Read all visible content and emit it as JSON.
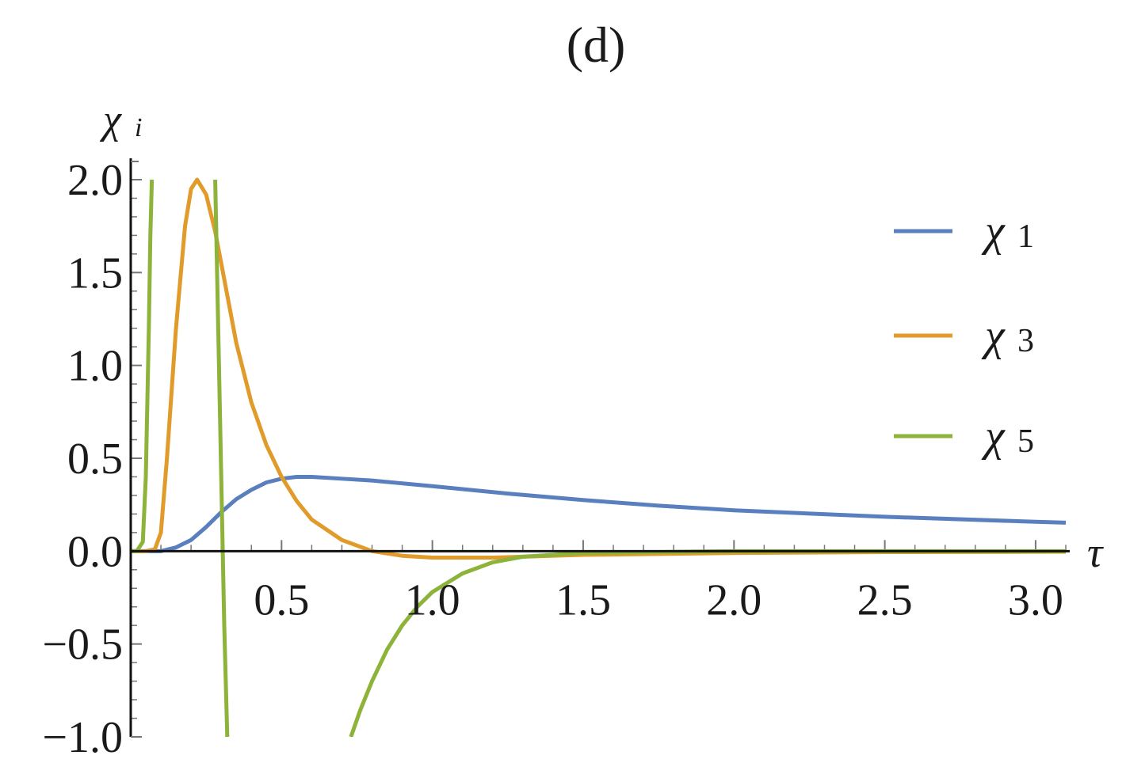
{
  "chart_data": {
    "type": "line",
    "title": "(d)",
    "xlabel": "τ",
    "ylabel_main": "χ",
    "ylabel_sub": "i",
    "xlim": [
      0.0,
      3.1
    ],
    "ylim": [
      -1.0,
      2.0
    ],
    "x_ticks": [
      {
        "value": 0.5,
        "label": "0.5"
      },
      {
        "value": 1.0,
        "label": "1.0"
      },
      {
        "value": 1.5,
        "label": "1.5"
      },
      {
        "value": 2.0,
        "label": "2.0"
      },
      {
        "value": 2.5,
        "label": "2.5"
      },
      {
        "value": 3.0,
        "label": "3.0"
      }
    ],
    "y_ticks": [
      {
        "value": 2.0,
        "label": "2.0"
      },
      {
        "value": 1.5,
        "label": "1.5"
      },
      {
        "value": 1.0,
        "label": "1.0"
      },
      {
        "value": 0.5,
        "label": "0.5"
      },
      {
        "value": 0.0,
        "label": "0.0"
      },
      {
        "value": -0.5,
        "label": "−0.5"
      },
      {
        "value": -1.0,
        "label": "−1.0"
      }
    ],
    "legend_position": "top-right",
    "series": [
      {
        "name_main": "χ",
        "name_sub": "1",
        "color": "#5a7fbf",
        "x": [
          0.0,
          0.05,
          0.1,
          0.15,
          0.2,
          0.25,
          0.3,
          0.35,
          0.4,
          0.45,
          0.5,
          0.55,
          0.6,
          0.7,
          0.8,
          0.9,
          1.0,
          1.25,
          1.5,
          1.75,
          2.0,
          2.5,
          3.0,
          3.1
        ],
        "y": [
          0.0,
          0.0,
          0.0,
          0.02,
          0.06,
          0.13,
          0.21,
          0.28,
          0.33,
          0.37,
          0.39,
          0.4,
          0.4,
          0.39,
          0.38,
          0.365,
          0.35,
          0.31,
          0.275,
          0.245,
          0.22,
          0.185,
          0.158,
          0.153
        ]
      },
      {
        "name_main": "χ",
        "name_sub": "3",
        "color": "#e19b2b",
        "x": [
          0.0,
          0.05,
          0.08,
          0.1,
          0.12,
          0.15,
          0.18,
          0.2,
          0.22,
          0.25,
          0.28,
          0.3,
          0.35,
          0.4,
          0.45,
          0.5,
          0.55,
          0.6,
          0.7,
          0.8,
          0.9,
          1.0,
          1.2,
          1.5,
          2.0,
          2.5,
          3.1
        ],
        "y": [
          0.0,
          0.0,
          0.01,
          0.1,
          0.5,
          1.2,
          1.75,
          1.95,
          2.0,
          1.92,
          1.72,
          1.55,
          1.12,
          0.8,
          0.57,
          0.4,
          0.27,
          0.17,
          0.06,
          0.0,
          -0.025,
          -0.035,
          -0.035,
          -0.02,
          -0.01,
          -0.005,
          -0.003
        ]
      },
      {
        "name_main": "χ",
        "name_sub": "5",
        "color": "#8db33a",
        "x_segment_1": [
          0.0,
          0.02,
          0.04,
          0.05,
          0.06,
          0.065,
          0.07
        ],
        "y_segment_1": [
          0.0,
          0.0,
          0.05,
          0.4,
          1.2,
          1.7,
          2.0
        ],
        "x_segment_2": [
          0.28,
          0.29,
          0.3,
          0.31,
          0.32
        ],
        "y_segment_2": [
          2.0,
          1.2,
          0.4,
          -0.4,
          -1.0
        ],
        "x_segment_3": [
          0.73,
          0.76,
          0.8,
          0.85,
          0.9,
          0.95,
          1.0,
          1.1,
          1.2,
          1.3,
          1.5,
          2.0,
          2.5,
          3.1
        ],
        "y_segment_3": [
          -1.0,
          -0.86,
          -0.7,
          -0.53,
          -0.4,
          -0.3,
          -0.22,
          -0.12,
          -0.06,
          -0.03,
          -0.01,
          0.0,
          0.0,
          0.0
        ]
      }
    ]
  }
}
